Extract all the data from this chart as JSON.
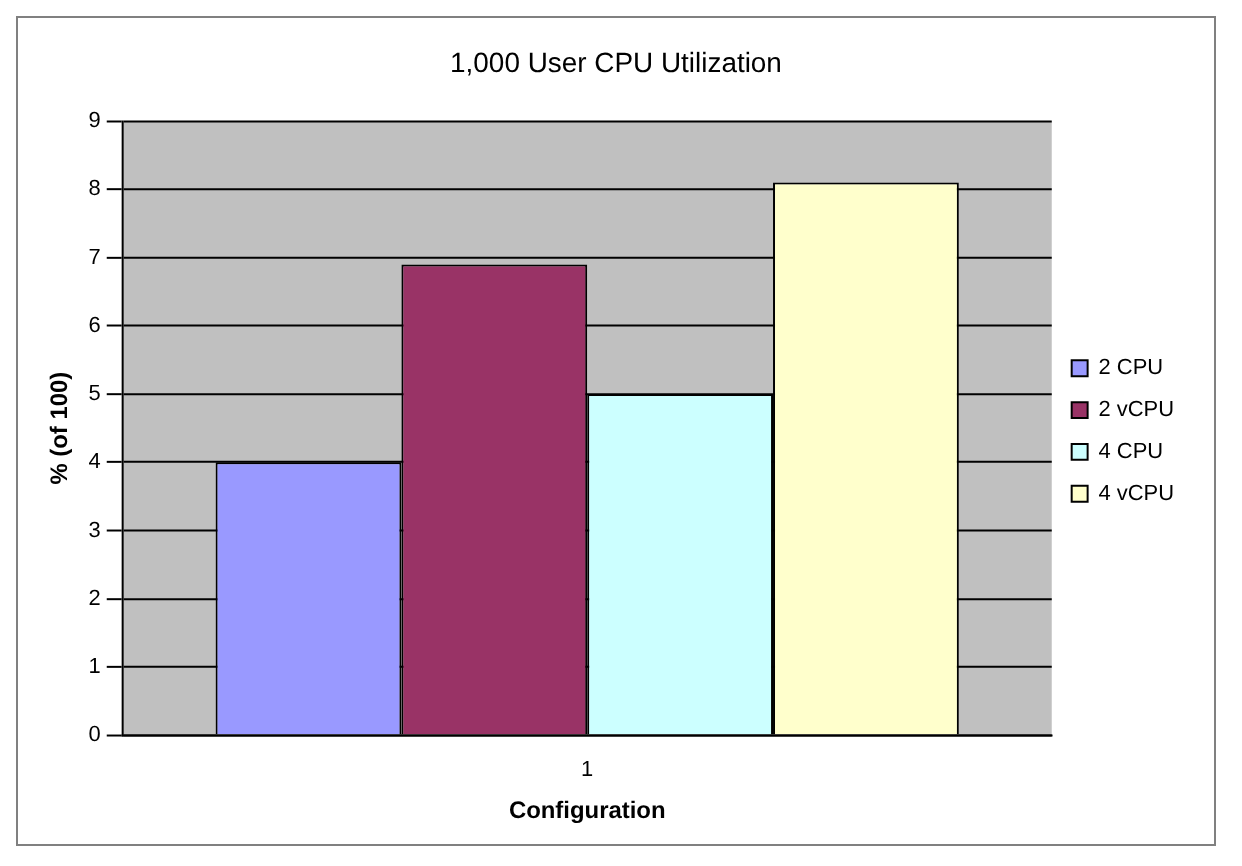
{
  "chart_data": {
    "type": "bar",
    "title": "1,000 User CPU Utilization",
    "xlabel": "Configuration",
    "ylabel": "% (of 100)",
    "categories": [
      "1"
    ],
    "series": [
      {
        "name": "2 CPU",
        "color": "#9999ff",
        "values": [
          4
        ]
      },
      {
        "name": "2 vCPU",
        "color": "#993366",
        "values": [
          6.9
        ]
      },
      {
        "name": "4 CPU",
        "color": "#ccffff",
        "values": [
          5
        ]
      },
      {
        "name": "4 vCPU",
        "color": "#ffffcc",
        "values": [
          8.1
        ]
      }
    ],
    "ylim": [
      0,
      9
    ],
    "yticks": [
      0,
      1,
      2,
      3,
      4,
      5,
      6,
      7,
      8,
      9
    ],
    "grid": "y",
    "legend": "right"
  }
}
